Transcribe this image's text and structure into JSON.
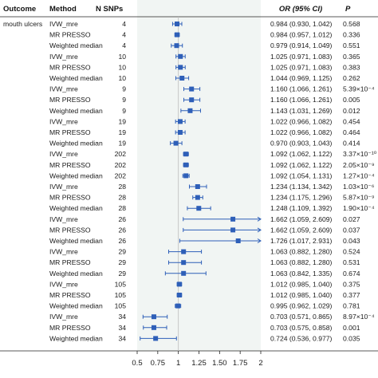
{
  "headers": {
    "outcome": "Outcome",
    "method": "Method",
    "nsnps": "N SNPs",
    "or": "OR (95% CI)",
    "p": "P"
  },
  "outcome_label": "mouth ulcers",
  "colors": {
    "point": "#2e5fb8",
    "band": "#f1f5f3",
    "line": "#666666"
  },
  "chart_data": {
    "type": "forest",
    "x_ticks": [
      "0.5",
      "0.75",
      "1",
      "1.25",
      "1.50",
      "1.75",
      "2"
    ],
    "xlim": [
      0.5,
      2.0
    ],
    "reference_line": 1,
    "rows": [
      {
        "method": "IVW_mre",
        "n": "4",
        "or": 0.984,
        "lo": 0.93,
        "hi": 1.042,
        "or_text": "0.984 (0.930, 1.042)",
        "p": "0.568"
      },
      {
        "method": "MR PRESSO",
        "n": "4",
        "or": 0.984,
        "lo": 0.957,
        "hi": 1.012,
        "or_text": "0.984 (0.957, 1.012)",
        "p": "0.336"
      },
      {
        "method": "Weighted median",
        "n": "4",
        "or": 0.979,
        "lo": 0.914,
        "hi": 1.049,
        "or_text": "0.979 (0.914, 1.049)",
        "p": "0.551"
      },
      {
        "method": "IVW_mre",
        "n": "10",
        "or": 1.025,
        "lo": 0.971,
        "hi": 1.083,
        "or_text": "1.025 (0.971, 1.083)",
        "p": "0.365"
      },
      {
        "method": "MR PRESSO",
        "n": "10",
        "or": 1.025,
        "lo": 0.971,
        "hi": 1.083,
        "or_text": "1.025 (0.971, 1.083)",
        "p": "0.383"
      },
      {
        "method": "Weighted median",
        "n": "10",
        "or": 1.044,
        "lo": 0.969,
        "hi": 1.125,
        "or_text": "1.044 (0.969, 1.125)",
        "p": "0.262"
      },
      {
        "method": "IVW_mre",
        "n": "9",
        "or": 1.16,
        "lo": 1.066,
        "hi": 1.261,
        "or_text": "1.160 (1.066, 1.261)",
        "p": "5.39×10⁻⁴"
      },
      {
        "method": "MR PRESSO",
        "n": "9",
        "or": 1.16,
        "lo": 1.066,
        "hi": 1.261,
        "or_text": "1.160 (1.066, 1.261)",
        "p": "0.005"
      },
      {
        "method": "Weighted median",
        "n": "9",
        "or": 1.143,
        "lo": 1.031,
        "hi": 1.269,
        "or_text": "1.143 (1.031, 1.269)",
        "p": "0.012"
      },
      {
        "method": "IVW_mre",
        "n": "19",
        "or": 1.022,
        "lo": 0.966,
        "hi": 1.082,
        "or_text": "1.022 (0.966, 1.082)",
        "p": "0.454"
      },
      {
        "method": "MR PRESSO",
        "n": "19",
        "or": 1.022,
        "lo": 0.966,
        "hi": 1.082,
        "or_text": "1.022 (0.966, 1.082)",
        "p": "0.464"
      },
      {
        "method": "Weighted median",
        "n": "19",
        "or": 0.97,
        "lo": 0.903,
        "hi": 1.043,
        "or_text": "0.970 (0.903, 1.043)",
        "p": "0.414"
      },
      {
        "method": "IVW_mre",
        "n": "202",
        "or": 1.092,
        "lo": 1.062,
        "hi": 1.122,
        "or_text": "1.092 (1.062, 1.122)",
        "p": "3.37×10⁻¹⁰"
      },
      {
        "method": "MR PRESSO",
        "n": "202",
        "or": 1.092,
        "lo": 1.062,
        "hi": 1.122,
        "or_text": "1.092 (1.062, 1.122)",
        "p": "2.05×10⁻⁹"
      },
      {
        "method": "Weighted median",
        "n": "202",
        "or": 1.092,
        "lo": 1.054,
        "hi": 1.131,
        "or_text": "1.092 (1.054, 1.131)",
        "p": "1.27×10⁻⁴"
      },
      {
        "method": "IVW_mre",
        "n": "28",
        "or": 1.234,
        "lo": 1.134,
        "hi": 1.342,
        "or_text": "1.234 (1.134, 1.342)",
        "p": "1.03×10⁻⁶"
      },
      {
        "method": "MR PRESSO",
        "n": "28",
        "or": 1.234,
        "lo": 1.175,
        "hi": 1.296,
        "or_text": "1.234 (1.175, 1.296)",
        "p": "5.87×10⁻⁹"
      },
      {
        "method": "Weighted median",
        "n": "28",
        "or": 1.248,
        "lo": 1.109,
        "hi": 1.392,
        "or_text": "1.248 (1.109, 1.392)",
        "p": "1.90×10⁻⁴"
      },
      {
        "method": "IVW_mre",
        "n": "26",
        "or": 1.662,
        "lo": 1.059,
        "hi": 2.609,
        "or_text": "1.662 (1.059, 2.609)",
        "p": "0.027"
      },
      {
        "method": "MR PRESSO",
        "n": "26",
        "or": 1.662,
        "lo": 1.059,
        "hi": 2.609,
        "or_text": "1.662 (1.059, 2.609)",
        "p": "0.037"
      },
      {
        "method": "Weighted median",
        "n": "26",
        "or": 1.726,
        "lo": 1.017,
        "hi": 2.931,
        "or_text": "1.726 (1.017, 2.931)",
        "p": "0.043"
      },
      {
        "method": "IVW_mre",
        "n": "29",
        "or": 1.063,
        "lo": 0.882,
        "hi": 1.28,
        "or_text": "1.063 (0.882, 1.280)",
        "p": "0.524"
      },
      {
        "method": "MR PRESSO",
        "n": "29",
        "or": 1.063,
        "lo": 0.882,
        "hi": 1.28,
        "or_text": "1.063 (0.882, 1.280)",
        "p": "0.531"
      },
      {
        "method": "Weighted median",
        "n": "29",
        "or": 1.063,
        "lo": 0.842,
        "hi": 1.335,
        "or_text": "1.063 (0.842, 1.335)",
        "p": "0.674"
      },
      {
        "method": "IVW_mre",
        "n": "105",
        "or": 1.012,
        "lo": 0.985,
        "hi": 1.04,
        "or_text": "1.012 (0.985, 1.040)",
        "p": "0.375"
      },
      {
        "method": "MR PRESSO",
        "n": "105",
        "or": 1.012,
        "lo": 0.985,
        "hi": 1.04,
        "or_text": "1.012 (0.985, 1.040)",
        "p": "0.377"
      },
      {
        "method": "Weighted median",
        "n": "105",
        "or": 0.995,
        "lo": 0.962,
        "hi": 1.029,
        "or_text": "0.995 (0.962, 1.029)",
        "p": "0.781"
      },
      {
        "method": "IVW_mre",
        "n": "34",
        "or": 0.703,
        "lo": 0.571,
        "hi": 0.865,
        "or_text": "0.703 (0.571, 0.865)",
        "p": "8.97×10⁻⁴"
      },
      {
        "method": "MR PRESSO",
        "n": "34",
        "or": 0.703,
        "lo": 0.575,
        "hi": 0.858,
        "or_text": "0.703 (0.575, 0.858)",
        "p": "0.001"
      },
      {
        "method": "Weighted median",
        "n": "34",
        "or": 0.724,
        "lo": 0.536,
        "hi": 0.977,
        "or_text": "0.724 (0.536, 0.977)",
        "p": "0.035"
      }
    ]
  }
}
